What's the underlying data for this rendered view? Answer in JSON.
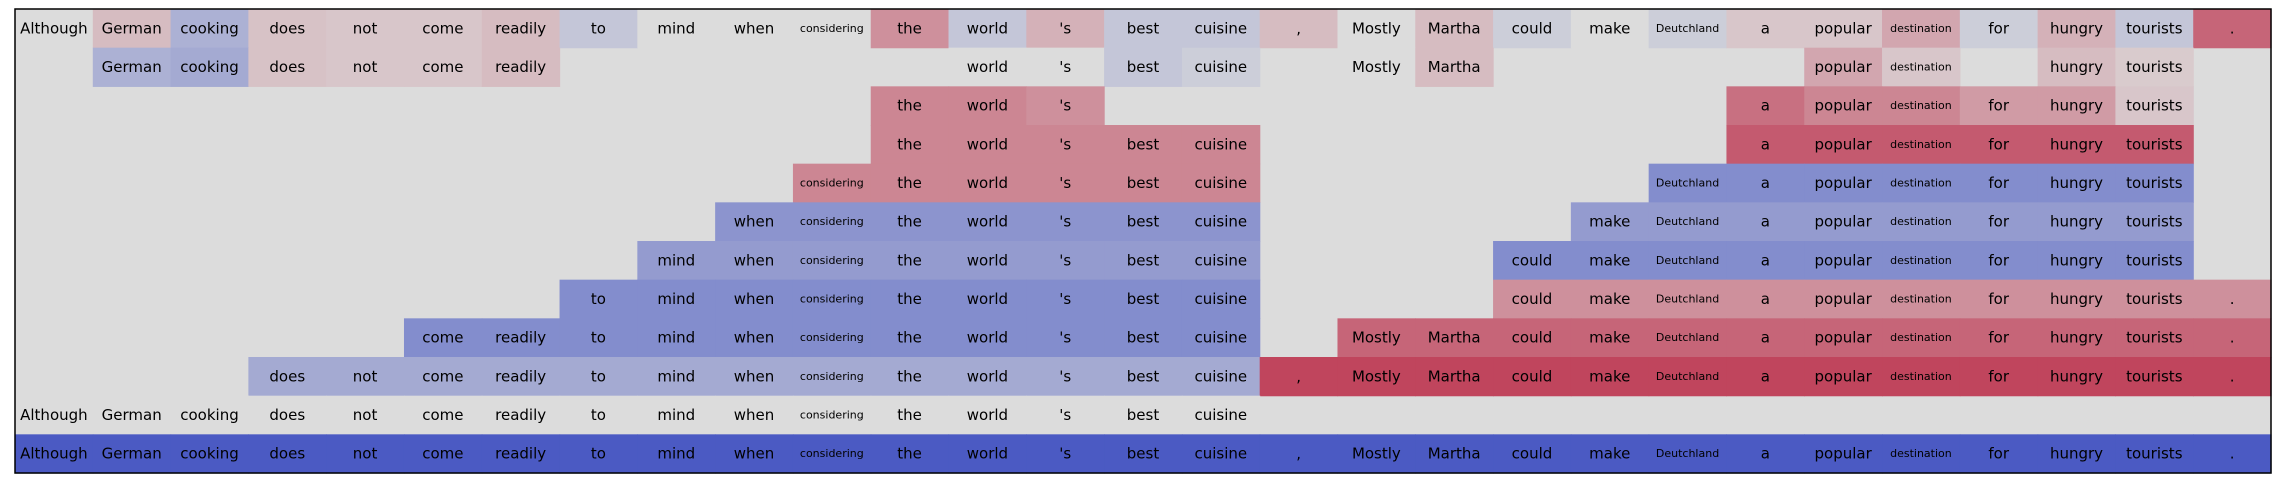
{
  "chart_data": {
    "type": "heatmap",
    "title": "",
    "xlabel": "",
    "ylabel": "",
    "tokens": [
      "Although",
      "German",
      "cooking",
      "does",
      "not",
      "come",
      "readily",
      "to",
      "mind",
      "when",
      "considering",
      "the",
      "world",
      "'s",
      "best",
      "cuisine",
      ",",
      "Mostly",
      "Martha",
      "could",
      "make",
      "Deutchland",
      "a",
      "popular",
      "destination",
      "for",
      "hungry",
      "tourists",
      "."
    ],
    "small_tokens": [
      "considering",
      "Deutchland",
      "destination"
    ],
    "color_scale": {
      "min": -1,
      "max": 1,
      "neutral": "#dcdcdc",
      "negative": "#3b4cc0",
      "positive": "#b40426"
    },
    "rows": [
      {
        "values": [
          0,
          0.15,
          -0.3,
          0.12,
          0.1,
          0.1,
          0.15,
          -0.15,
          0,
          0,
          0,
          0.35,
          -0.15,
          0.2,
          -0.15,
          -0.15,
          0.15,
          0,
          0.15,
          -0.1,
          0,
          -0.1,
          0.1,
          0.1,
          0.25,
          -0.1,
          0.2,
          -0.15,
          0.55
        ]
      },
      {
        "values": [
          null,
          -0.3,
          -0.35,
          0.12,
          0.1,
          0.1,
          0.15,
          null,
          null,
          null,
          null,
          null,
          0,
          0,
          -0.15,
          -0.1,
          null,
          0,
          0.15,
          null,
          null,
          null,
          null,
          0.25,
          0.1,
          null,
          0.15,
          0.08,
          null
        ]
      },
      {
        "values": [
          null,
          null,
          null,
          null,
          null,
          null,
          null,
          null,
          null,
          null,
          null,
          0.4,
          0.4,
          0.35,
          null,
          null,
          null,
          null,
          null,
          null,
          null,
          null,
          0.5,
          0.4,
          0.4,
          0.3,
          0.3,
          0.1,
          null
        ]
      },
      {
        "values": [
          null,
          null,
          null,
          null,
          null,
          null,
          null,
          null,
          null,
          null,
          null,
          0.4,
          0.4,
          0.4,
          0.4,
          0.4,
          null,
          null,
          null,
          null,
          null,
          null,
          0.6,
          0.6,
          0.6,
          0.6,
          0.6,
          0.6,
          null
        ]
      },
      {
        "values": [
          null,
          null,
          null,
          null,
          null,
          null,
          null,
          null,
          null,
          null,
          0.4,
          0.4,
          0.4,
          0.4,
          0.4,
          0.4,
          null,
          null,
          null,
          null,
          null,
          -0.55,
          -0.55,
          -0.55,
          -0.55,
          -0.55,
          -0.55,
          -0.55,
          null
        ]
      },
      {
        "values": [
          null,
          null,
          null,
          null,
          null,
          null,
          null,
          null,
          null,
          -0.5,
          -0.5,
          -0.5,
          -0.5,
          -0.5,
          -0.5,
          -0.5,
          null,
          null,
          null,
          null,
          -0.45,
          -0.45,
          -0.45,
          -0.45,
          -0.45,
          -0.45,
          -0.45,
          -0.45,
          null
        ]
      },
      {
        "values": [
          null,
          null,
          null,
          null,
          null,
          null,
          null,
          null,
          -0.45,
          -0.45,
          -0.45,
          -0.45,
          -0.45,
          -0.45,
          -0.45,
          -0.45,
          null,
          null,
          null,
          -0.55,
          -0.55,
          -0.55,
          -0.55,
          -0.55,
          -0.55,
          -0.55,
          -0.55,
          -0.55,
          null
        ]
      },
      {
        "values": [
          null,
          null,
          null,
          null,
          null,
          null,
          null,
          -0.55,
          -0.55,
          -0.55,
          -0.55,
          -0.55,
          -0.55,
          -0.55,
          -0.55,
          -0.55,
          null,
          null,
          null,
          0.35,
          0.35,
          0.35,
          0.35,
          0.35,
          0.35,
          0.35,
          0.35,
          0.35,
          0.35
        ]
      },
      {
        "values": [
          null,
          null,
          null,
          null,
          null,
          -0.55,
          -0.55,
          -0.55,
          -0.55,
          -0.55,
          -0.55,
          -0.55,
          -0.55,
          -0.55,
          -0.55,
          -0.55,
          null,
          0.55,
          0.55,
          0.55,
          0.55,
          0.55,
          0.55,
          0.55,
          0.55,
          0.55,
          0.55,
          0.55,
          0.55
        ]
      },
      {
        "values": [
          null,
          null,
          null,
          -0.35,
          -0.35,
          -0.35,
          -0.35,
          -0.35,
          -0.35,
          -0.35,
          -0.35,
          -0.35,
          -0.35,
          -0.35,
          -0.35,
          -0.35,
          0.7,
          0.7,
          0.7,
          0.7,
          0.7,
          0.7,
          0.7,
          0.7,
          0.7,
          0.7,
          0.7,
          0.7,
          0.7
        ]
      },
      {
        "values": [
          0,
          0,
          0,
          0,
          0,
          0,
          0,
          0,
          0,
          0,
          0,
          0,
          0,
          0,
          0,
          0,
          null,
          null,
          null,
          null,
          null,
          null,
          null,
          null,
          null,
          null,
          null,
          null,
          null
        ]
      },
      {
        "values": [
          -0.9,
          -0.9,
          -0.9,
          -0.9,
          -0.9,
          -0.9,
          -0.9,
          -0.9,
          -0.9,
          -0.9,
          -0.9,
          -0.9,
          -0.9,
          -0.9,
          -0.9,
          -0.9,
          -0.9,
          -0.9,
          -0.9,
          -0.9,
          -0.9,
          -0.9,
          -0.9,
          -0.9,
          -0.9,
          -0.9,
          -0.9,
          -0.9,
          -0.9
        ]
      }
    ]
  }
}
